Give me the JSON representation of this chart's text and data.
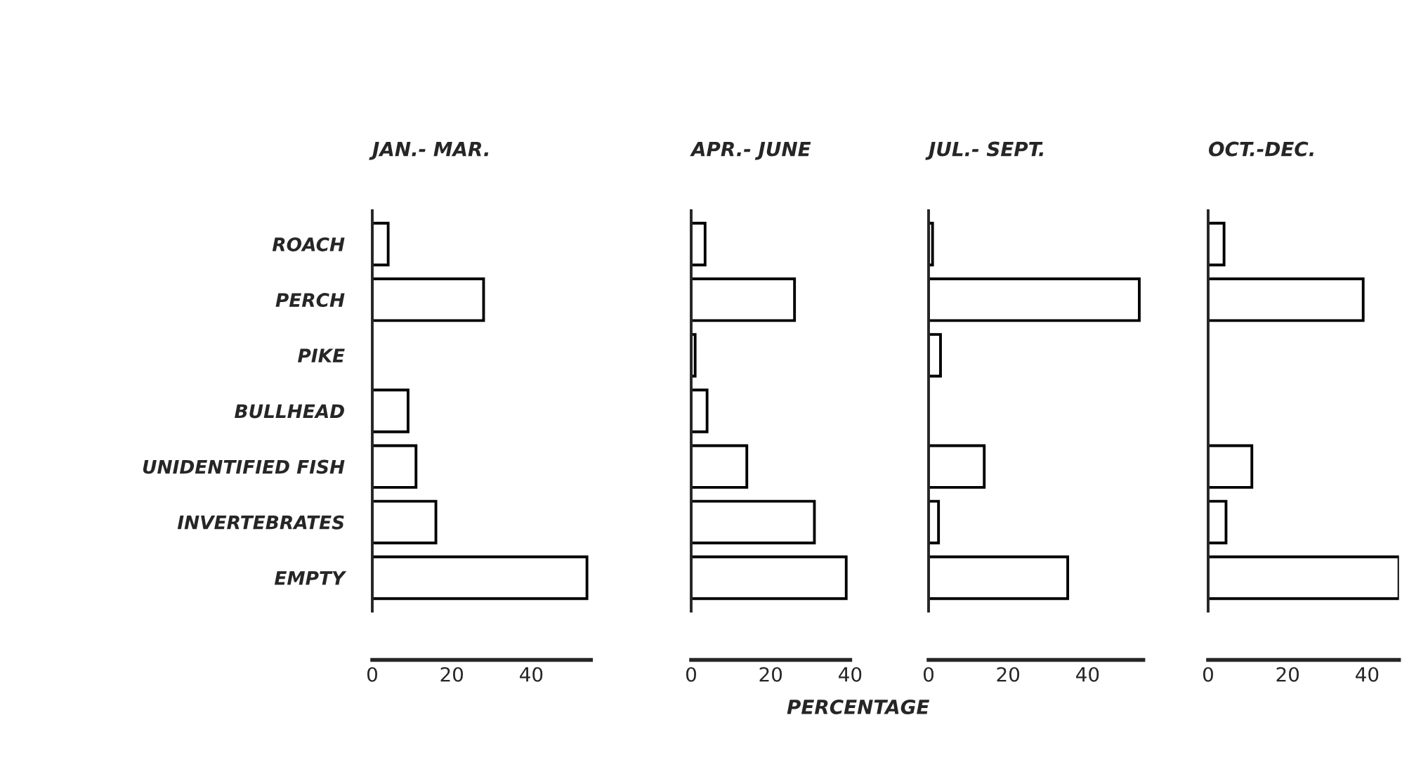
{
  "chart_data": [
    {
      "type": "bar",
      "orientation": "horizontal",
      "title": "JAN.- MAR.",
      "categories": [
        "ROACH",
        "PERCH",
        "PIKE",
        "BULLHEAD",
        "UNIDENTIFIED FISH",
        "INVERTEBRATES",
        "EMPTY"
      ],
      "values": [
        4,
        28,
        0,
        9,
        11,
        16,
        54
      ],
      "color": "#ffffff",
      "xlim": [
        0,
        55
      ],
      "xticks": [
        0,
        20,
        40
      ],
      "grid": false
    },
    {
      "type": "bar",
      "orientation": "horizontal",
      "title": "APR.- JUNE",
      "xlabel": "PERCENTAGE",
      "categories": [
        null,
        null,
        null,
        null,
        null,
        null,
        null
      ],
      "values": [
        3.5,
        26,
        1,
        4,
        14,
        31,
        39
      ],
      "color": "#ffffff",
      "xlim": [
        0,
        40
      ],
      "xticks": [
        0,
        20,
        40
      ],
      "tick_labels": "x",
      "grid": false
    },
    {
      "type": "bar",
      "orientation": "horizontal",
      "title": "JUL.- SEPT.",
      "categories": [
        null,
        null,
        null,
        null,
        null,
        null,
        null
      ],
      "values": [
        1,
        53,
        3,
        0,
        14,
        2.5,
        35
      ],
      "color": "#ffffff",
      "xlim": [
        0,
        54
      ],
      "xticks": [
        0,
        20,
        40
      ],
      "tick_labels": "x",
      "grid": false
    },
    {
      "type": "bar",
      "orientation": "horizontal",
      "title": "OCT.-DEC.",
      "categories": [
        null,
        null,
        null,
        null,
        null,
        null,
        null
      ],
      "values": [
        4,
        39,
        0,
        0,
        11,
        4.5,
        48
      ],
      "color": "#ffffff",
      "xlim": [
        0,
        48
      ],
      "xticks": [
        0,
        20,
        40
      ],
      "tick_labels": "x",
      "grid": false
    }
  ]
}
